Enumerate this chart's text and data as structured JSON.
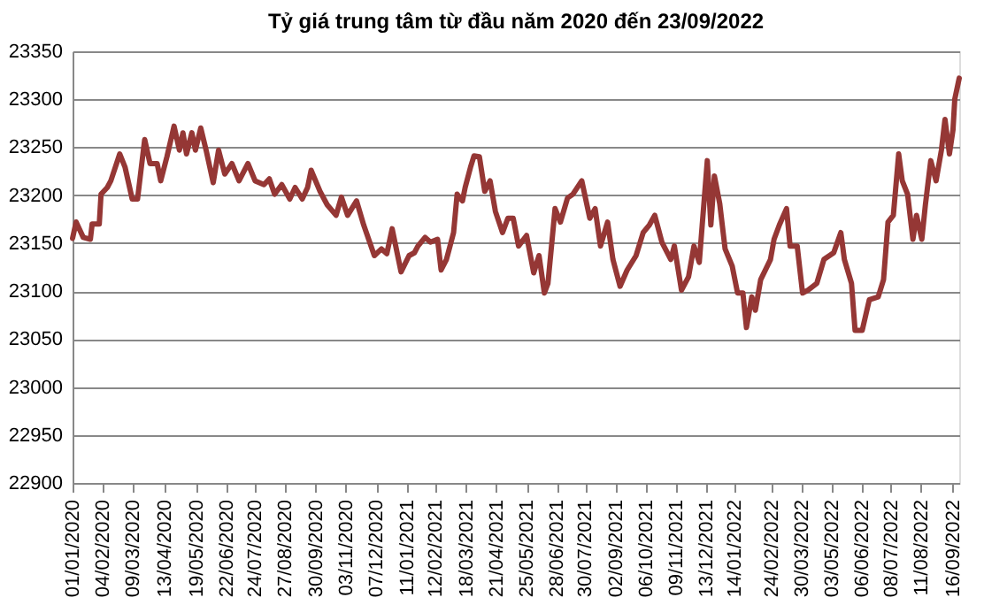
{
  "chart_data": {
    "type": "line",
    "title": "Tỷ giá trung tâm từ đầu năm 2020  đến 23/09/2022",
    "x": [
      "2020-01-01",
      "2020-01-05",
      "2020-01-13",
      "2020-01-21",
      "2020-01-23",
      "2020-01-31",
      "2020-02-02",
      "2020-02-09",
      "2020-02-13",
      "2020-02-23",
      "2020-02-29",
      "2020-03-08",
      "2020-03-14",
      "2020-03-22",
      "2020-03-28",
      "2020-04-05",
      "2020-04-09",
      "2020-04-16",
      "2020-04-24",
      "2020-04-30",
      "2020-05-04",
      "2020-05-08",
      "2020-05-14",
      "2020-05-18",
      "2020-05-24",
      "2020-05-30",
      "2020-06-07",
      "2020-06-13",
      "2020-06-20",
      "2020-06-28",
      "2020-07-06",
      "2020-07-16",
      "2020-07-24",
      "2020-08-03",
      "2020-08-09",
      "2020-08-15",
      "2020-08-23",
      "2020-09-01",
      "2020-09-07",
      "2020-09-15",
      "2020-09-21",
      "2020-09-25",
      "2020-10-05",
      "2020-10-13",
      "2020-10-23",
      "2020-10-29",
      "2020-11-05",
      "2020-11-15",
      "2020-11-23",
      "2020-12-05",
      "2020-12-13",
      "2020-12-19",
      "2020-12-25",
      "2021-01-04",
      "2021-01-13",
      "2021-01-19",
      "2021-01-23",
      "2021-01-31",
      "2021-02-06",
      "2021-02-14",
      "2021-02-18",
      "2021-02-24",
      "2021-03-04",
      "2021-03-08",
      "2021-03-14",
      "2021-03-17",
      "2021-03-23",
      "2021-03-27",
      "2021-04-02",
      "2021-04-08",
      "2021-04-14",
      "2021-04-20",
      "2021-04-28",
      "2021-05-04",
      "2021-05-10",
      "2021-05-16",
      "2021-05-25",
      "2021-06-02",
      "2021-06-08",
      "2021-06-14",
      "2021-06-18",
      "2021-06-26",
      "2021-07-02",
      "2021-07-10",
      "2021-07-16",
      "2021-07-26",
      "2021-08-04",
      "2021-08-10",
      "2021-08-16",
      "2021-08-24",
      "2021-08-30",
      "2021-09-07",
      "2021-09-15",
      "2021-09-25",
      "2021-10-03",
      "2021-10-10",
      "2021-10-16",
      "2021-10-24",
      "2021-11-03",
      "2021-11-07",
      "2021-11-15",
      "2021-11-23",
      "2021-11-29",
      "2021-12-05",
      "2021-12-14",
      "2021-12-18",
      "2021-12-22",
      "2021-12-28",
      "2022-01-03",
      "2022-01-11",
      "2022-01-17",
      "2022-01-23",
      "2022-01-27",
      "2022-02-02",
      "2022-02-06",
      "2022-02-12",
      "2022-02-23",
      "2022-02-27",
      "2022-03-05",
      "2022-03-13",
      "2022-03-17",
      "2022-03-25",
      "2022-03-31",
      "2022-04-06",
      "2022-04-16",
      "2022-04-24",
      "2022-05-05",
      "2022-05-13",
      "2022-05-17",
      "2022-05-25",
      "2022-05-29",
      "2022-06-06",
      "2022-06-14",
      "2022-06-24",
      "2022-06-30",
      "2022-07-05",
      "2022-07-11",
      "2022-07-17",
      "2022-07-21",
      "2022-07-27",
      "2022-08-02",
      "2022-08-06",
      "2022-08-12",
      "2022-08-16",
      "2022-08-22",
      "2022-08-28",
      "2022-09-03",
      "2022-09-07",
      "2022-09-12",
      "2022-09-16",
      "2022-09-18",
      "2022-09-23"
    ],
    "series": [
      {
        "color": "#953735",
        "values": [
          23155,
          23172,
          23156,
          23154,
          23170,
          23170,
          23201,
          23208,
          23215,
          23243,
          23229,
          23196,
          23196,
          23258,
          23233,
          23233,
          23215,
          23240,
          23272,
          23247,
          23265,
          23243,
          23265,
          23247,
          23270,
          23247,
          23213,
          23247,
          23222,
          23233,
          23215,
          23233,
          23215,
          23211,
          23217,
          23201,
          23211,
          23196,
          23208,
          23196,
          23208,
          23226,
          23204,
          23190,
          23179,
          23198,
          23179,
          23194,
          23169,
          23137,
          23144,
          23139,
          23165,
          23120,
          23137,
          23140,
          23147,
          23156,
          23151,
          23154,
          23122,
          23133,
          23161,
          23201,
          23194,
          23208,
          23229,
          23241,
          23240,
          23204,
          23215,
          23183,
          23161,
          23176,
          23176,
          23147,
          23158,
          23119,
          23137,
          23098,
          23108,
          23186,
          23172,
          23197,
          23201,
          23215,
          23176,
          23186,
          23147,
          23172,
          23133,
          23105,
          23122,
          23137,
          23161,
          23169,
          23179,
          23151,
          23133,
          23147,
          23101,
          23115,
          23147,
          23130,
          23236,
          23169,
          23220,
          23191,
          23144,
          23126,
          23098,
          23098,
          23062,
          23094,
          23080,
          23112,
          23133,
          23154,
          23169,
          23186,
          23147,
          23147,
          23098,
          23101,
          23108,
          23133,
          23140,
          23161,
          23133,
          23108,
          23059,
          23059,
          23091,
          23094,
          23112,
          23172,
          23179,
          23243,
          23215,
          23201,
          23154,
          23179,
          23154,
          23190,
          23236,
          23215,
          23247,
          23279,
          23243,
          23268,
          23300,
          23322
        ]
      }
    ],
    "xlim": [
      "2020-01-01",
      "2022-09-23"
    ],
    "xticks": [
      {
        "value": "2020-01-01",
        "label": "01/01/2020"
      },
      {
        "value": "2020-02-04",
        "label": "04/02/2020"
      },
      {
        "value": "2020-03-09",
        "label": "09/03/2020"
      },
      {
        "value": "2020-04-13",
        "label": "13/04/2020"
      },
      {
        "value": "2020-05-19",
        "label": "19/05/2020"
      },
      {
        "value": "2020-06-22",
        "label": "22/06/2020"
      },
      {
        "value": "2020-07-24",
        "label": "24/07/2020"
      },
      {
        "value": "2020-08-27",
        "label": "27/08/2020"
      },
      {
        "value": "2020-09-30",
        "label": "30/09/2020"
      },
      {
        "value": "2020-11-03",
        "label": "03/11/2020"
      },
      {
        "value": "2020-12-07",
        "label": "07/12/2020"
      },
      {
        "value": "2021-01-11",
        "label": "11/01/2021"
      },
      {
        "value": "2021-02-12",
        "label": "12/02/2021"
      },
      {
        "value": "2021-03-18",
        "label": "18/03/2021"
      },
      {
        "value": "2021-04-21",
        "label": "21/04/2021"
      },
      {
        "value": "2021-05-25",
        "label": "25/05/2021"
      },
      {
        "value": "2021-06-28",
        "label": "28/06/2021"
      },
      {
        "value": "2021-07-30",
        "label": "30/07/2021"
      },
      {
        "value": "2021-09-02",
        "label": "02/09/2021"
      },
      {
        "value": "2021-10-06",
        "label": "06/10/2021"
      },
      {
        "value": "2021-11-09",
        "label": "09/11/2021"
      },
      {
        "value": "2021-12-13",
        "label": "13/12/2021"
      },
      {
        "value": "2022-01-14",
        "label": "14/01/2022"
      },
      {
        "value": "2022-02-24",
        "label": "24/02/2022"
      },
      {
        "value": "2022-03-30",
        "label": "30/03/2022"
      },
      {
        "value": "2022-05-03",
        "label": "03/05/2022"
      },
      {
        "value": "2022-06-06",
        "label": "06/06/2022"
      },
      {
        "value": "2022-07-08",
        "label": "08/07/2022"
      },
      {
        "value": "2022-08-11",
        "label": "11/08/2022"
      },
      {
        "value": "2022-09-16",
        "label": "16/09/2022"
      }
    ],
    "ylim": [
      22900,
      23350
    ],
    "yticks": [
      22900,
      22950,
      23000,
      23050,
      23100,
      23150,
      23200,
      23250,
      23300,
      23350
    ],
    "grid": "y",
    "marker": "none",
    "line_style": "solid"
  }
}
